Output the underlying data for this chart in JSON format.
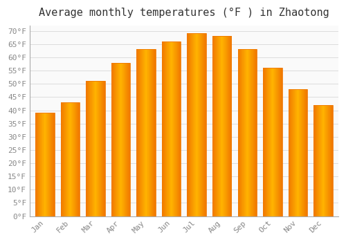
{
  "title": "Average monthly temperatures (°F ) in Zhaotong",
  "months": [
    "Jan",
    "Feb",
    "Mar",
    "Apr",
    "May",
    "Jun",
    "Jul",
    "Aug",
    "Sep",
    "Oct",
    "Nov",
    "Dec"
  ],
  "values": [
    39,
    43,
    51,
    58,
    63,
    66,
    69,
    68,
    63,
    56,
    48,
    42
  ],
  "bar_color_center": "#FFB400",
  "bar_color_edge": "#F07800",
  "background_color": "#FFFFFF",
  "plot_bg_color": "#FAFAFA",
  "ylim": [
    0,
    72
  ],
  "yticks": [
    0,
    5,
    10,
    15,
    20,
    25,
    30,
    35,
    40,
    45,
    50,
    55,
    60,
    65,
    70
  ],
  "title_fontsize": 11,
  "tick_fontsize": 8,
  "grid_color": "#DDDDDD",
  "tick_color": "#888888",
  "spine_color": "#AAAAAA",
  "bar_width": 0.75
}
